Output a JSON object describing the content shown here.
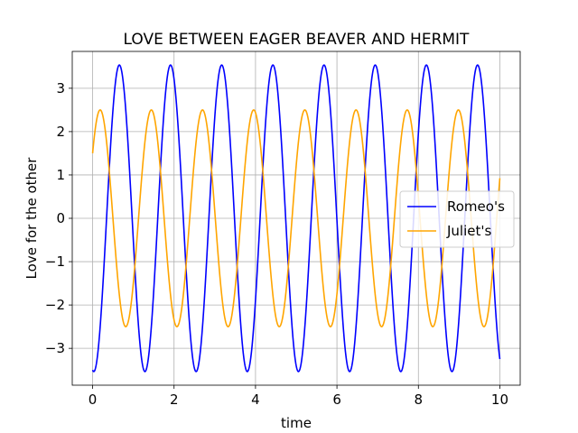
{
  "chart_data": {
    "type": "line",
    "title": "LOVE BETWEEN EAGER BEAVER AND HERMIT",
    "xlabel": "time",
    "ylabel": "Love for the other",
    "xlim": [
      -0.5,
      10.5
    ],
    "ylim": [
      -3.85,
      3.85
    ],
    "xticks": [
      0,
      2,
      4,
      6,
      8,
      10
    ],
    "yticks": [
      -3,
      -2,
      -1,
      0,
      1,
      2,
      3
    ],
    "xtick_labels": [
      "0",
      "2",
      "4",
      "6",
      "8",
      "10"
    ],
    "ytick_labels": [
      "−3",
      "−2",
      "−1",
      "0",
      "1",
      "2",
      "3"
    ],
    "grid": true,
    "legend_position": "center-right",
    "x_range": [
      0,
      10
    ],
    "series": [
      {
        "name": "Romeo's",
        "color": "#0000ff",
        "function": "-3.536*cos(5*t - 0.142)",
        "amplitude": 3.536,
        "angular_frequency": 5,
        "phase": -0.142
      },
      {
        "name": "Juliet's",
        "color": "#ffa500",
        "function": "2.5*sin(5*t + 0.644)",
        "amplitude": 2.5,
        "angular_frequency": 5,
        "phase": 0.644
      }
    ]
  }
}
